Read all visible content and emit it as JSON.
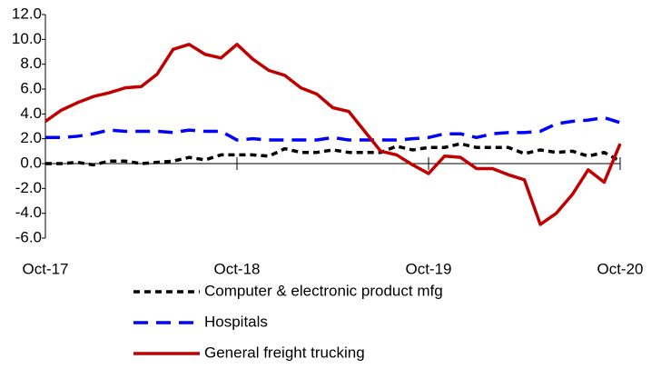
{
  "chart_data": {
    "type": "line",
    "categories": [
      "Oct-17",
      null,
      null,
      null,
      null,
      null,
      null,
      null,
      null,
      null,
      null,
      null,
      "Oct-18",
      null,
      null,
      null,
      null,
      null,
      null,
      null,
      null,
      null,
      null,
      null,
      "Oct-19",
      null,
      null,
      null,
      null,
      null,
      null,
      null,
      null,
      null,
      null,
      null,
      "Oct-20"
    ],
    "series": [
      {
        "name": "Computer & electronic product mfg",
        "color": "#000000",
        "dash": "7,5",
        "values": [
          0.0,
          0.0,
          0.1,
          -0.1,
          0.2,
          0.2,
          0.0,
          0.1,
          0.2,
          0.5,
          0.3,
          0.7,
          0.7,
          0.7,
          0.6,
          1.2,
          0.9,
          0.9,
          1.1,
          0.9,
          0.9,
          0.9,
          1.4,
          1.1,
          1.3,
          1.3,
          1.6,
          1.3,
          1.3,
          1.3,
          0.8,
          1.1,
          0.9,
          1.0,
          0.6,
          0.9,
          0.2
        ]
      },
      {
        "name": "Hospitals",
        "color": "#0000ff",
        "dash": "16,9",
        "values": [
          2.1,
          2.1,
          2.2,
          2.4,
          2.7,
          2.6,
          2.6,
          2.6,
          2.5,
          2.7,
          2.6,
          2.6,
          1.9,
          2.0,
          1.9,
          1.9,
          1.9,
          1.9,
          2.1,
          1.9,
          1.9,
          1.9,
          1.9,
          2.0,
          2.1,
          2.4,
          2.4,
          2.1,
          2.4,
          2.5,
          2.5,
          2.6,
          3.2,
          3.4,
          3.5,
          3.7,
          3.3
        ]
      },
      {
        "name": "General freight trucking",
        "color": "#c00000",
        "dash": "none",
        "values": [
          3.4,
          4.3,
          4.9,
          5.4,
          5.7,
          6.1,
          6.2,
          7.2,
          9.2,
          9.6,
          8.8,
          8.5,
          9.6,
          8.4,
          7.5,
          7.1,
          6.1,
          5.6,
          4.5,
          4.2,
          2.6,
          1.0,
          0.7,
          -0.1,
          -0.8,
          0.6,
          0.5,
          -0.4,
          -0.4,
          -0.9,
          -1.3,
          -4.9,
          -4.0,
          -2.5,
          -0.5,
          -1.5,
          1.6
        ]
      }
    ],
    "ylim": [
      -6,
      12
    ],
    "yticks": [
      {
        "value": -6,
        "label": "-6.0"
      },
      {
        "value": -4,
        "label": "-4.0"
      },
      {
        "value": -2,
        "label": "-2.0"
      },
      {
        "value": 0,
        "label": "0.0"
      },
      {
        "value": 2,
        "label": "2.0"
      },
      {
        "value": 4,
        "label": "4.0"
      },
      {
        "value": 6,
        "label": "6.0"
      },
      {
        "value": 8,
        "label": "8.0"
      },
      {
        "value": 10,
        "label": "10.0"
      },
      {
        "value": 12,
        "label": "12.0"
      }
    ],
    "grid": false
  }
}
